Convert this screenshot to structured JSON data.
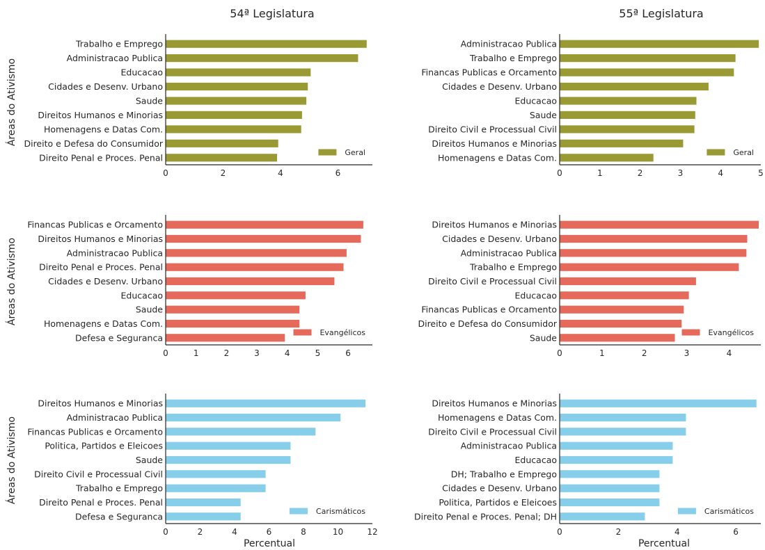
{
  "figure": {
    "column_titles": [
      "54ª Legislatura",
      "55ª Legislatura"
    ],
    "ylabel": "Áreas do Ativismo",
    "xlabel": "Percentual"
  },
  "chart_data": [
    {
      "type": "bar",
      "orientation": "horizontal",
      "title": "",
      "xlabel": "",
      "ylabel": "Áreas do Ativismo",
      "legend": {
        "label": "Geral",
        "position": "lower-right"
      },
      "color": "#9a9a35",
      "categories": [
        "Trabalho e Emprego",
        "Administracao Publica",
        "Educacao",
        "Cidades e Desenv. Urbano",
        "Saude",
        "Direitos Humanos e Minorias",
        "Homenagens e Datas Com.",
        "Direito e Defesa do Consumidor",
        "Direito Penal e Proces. Penal"
      ],
      "values": [
        7.0,
        6.7,
        5.05,
        4.95,
        4.9,
        4.75,
        4.72,
        3.92,
        3.88
      ],
      "xlim": [
        0,
        7.2
      ],
      "xticks": [
        0,
        2,
        4,
        6
      ]
    },
    {
      "type": "bar",
      "orientation": "horizontal",
      "title": "",
      "xlabel": "",
      "ylabel": "",
      "legend": {
        "label": "Geral",
        "position": "lower-right"
      },
      "color": "#9a9a35",
      "categories": [
        "Administracao Publica",
        "Trabalho e Emprego",
        "Financas Publicas e Orcamento",
        "Cidades e Desenv. Urbano",
        "Educacao",
        "Saude",
        "Direito Civil e Processual Civil",
        "Direitos Humanos e Minorias",
        "Homenagens e Datas Com."
      ],
      "values": [
        4.95,
        4.37,
        4.33,
        3.7,
        3.4,
        3.37,
        3.35,
        3.07,
        2.33
      ],
      "xlim": [
        0,
        5
      ],
      "xticks": [
        0,
        1,
        2,
        3,
        4,
        5
      ]
    },
    {
      "type": "bar",
      "orientation": "horizontal",
      "title": "",
      "xlabel": "",
      "ylabel": "Áreas do Ativismo",
      "legend": {
        "label": "Evangélicos",
        "position": "lower-right"
      },
      "color": "#e66a5c",
      "categories": [
        "Financas Publicas e Orcamento",
        "Direitos Humanos e Minorias",
        "Administracao Publica",
        "Direito Penal e Proces. Penal",
        "Cidades e Desenv. Urbano",
        "Educacao",
        "Saude",
        "Homenagens e Datas Com.",
        "Defesa e Seguranca"
      ],
      "values": [
        6.5,
        6.42,
        5.95,
        5.85,
        5.55,
        4.6,
        4.4,
        4.4,
        3.92
      ],
      "xlim": [
        0,
        6.8
      ],
      "xticks": [
        0,
        1,
        2,
        3,
        4,
        5,
        6
      ]
    },
    {
      "type": "bar",
      "orientation": "horizontal",
      "title": "",
      "xlabel": "",
      "ylabel": "",
      "legend": {
        "label": "Evangélicos",
        "position": "lower-right"
      },
      "color": "#e66a5c",
      "categories": [
        "Direitos Humanos e Minorias",
        "Cidades e Desenv. Urbano",
        "Administracao Publica",
        "Trabalho e Emprego",
        "Direito Civil e Processual Civil",
        "Educacao",
        "Financas Publicas e Orcamento",
        "Direito e Defesa do Consumidor",
        "Saude"
      ],
      "values": [
        4.7,
        4.43,
        4.41,
        4.23,
        3.22,
        3.05,
        2.93,
        2.88,
        2.72
      ],
      "xlim": [
        0,
        4.75
      ],
      "xticks": [
        0,
        1,
        2,
        3,
        4
      ]
    },
    {
      "type": "bar",
      "orientation": "horizontal",
      "title": "",
      "xlabel": "Percentual",
      "ylabel": "Áreas do Ativismo",
      "legend": {
        "label": "Carismáticos",
        "position": "lower-right"
      },
      "color": "#87ceeb",
      "categories": [
        "Direitos Humanos e Minorias",
        "Administracao Publica",
        "Financas Publicas e Orcamento",
        "Politica, Partidos e Eleicoes",
        "Saude",
        "Direito Civil e Processual Civil",
        "Trabalho e Emprego",
        "Direito Penal e Proces. Penal",
        "Defesa e Seguranca"
      ],
      "values": [
        11.6,
        10.15,
        8.7,
        7.25,
        7.25,
        5.8,
        5.8,
        4.35,
        4.35
      ],
      "xlim": [
        0,
        12
      ],
      "xticks": [
        0,
        2,
        4,
        6,
        8,
        10,
        12
      ]
    },
    {
      "type": "bar",
      "orientation": "horizontal",
      "title": "",
      "xlabel": "Percentual",
      "ylabel": "",
      "legend": {
        "label": "Carismáticos",
        "position": "lower-right"
      },
      "color": "#87ceeb",
      "categories": [
        "Direitos Humanos e Minorias",
        "Homenagens e Datas Com.",
        "Direito Civil e Processual Civil",
        "Administracao Publica",
        "Educacao",
        "DH; Trabalho e Emprego",
        "Cidades e Desenv. Urbano",
        "Politica, Partidos e Eleicoes",
        "Direito Penal e Proces. Penal; DH"
      ],
      "values": [
        6.7,
        4.3,
        4.3,
        3.85,
        3.85,
        3.4,
        3.4,
        3.4,
        2.9
      ],
      "xlim": [
        0,
        6.85
      ],
      "xticks": [
        0,
        2,
        4,
        6
      ]
    }
  ]
}
